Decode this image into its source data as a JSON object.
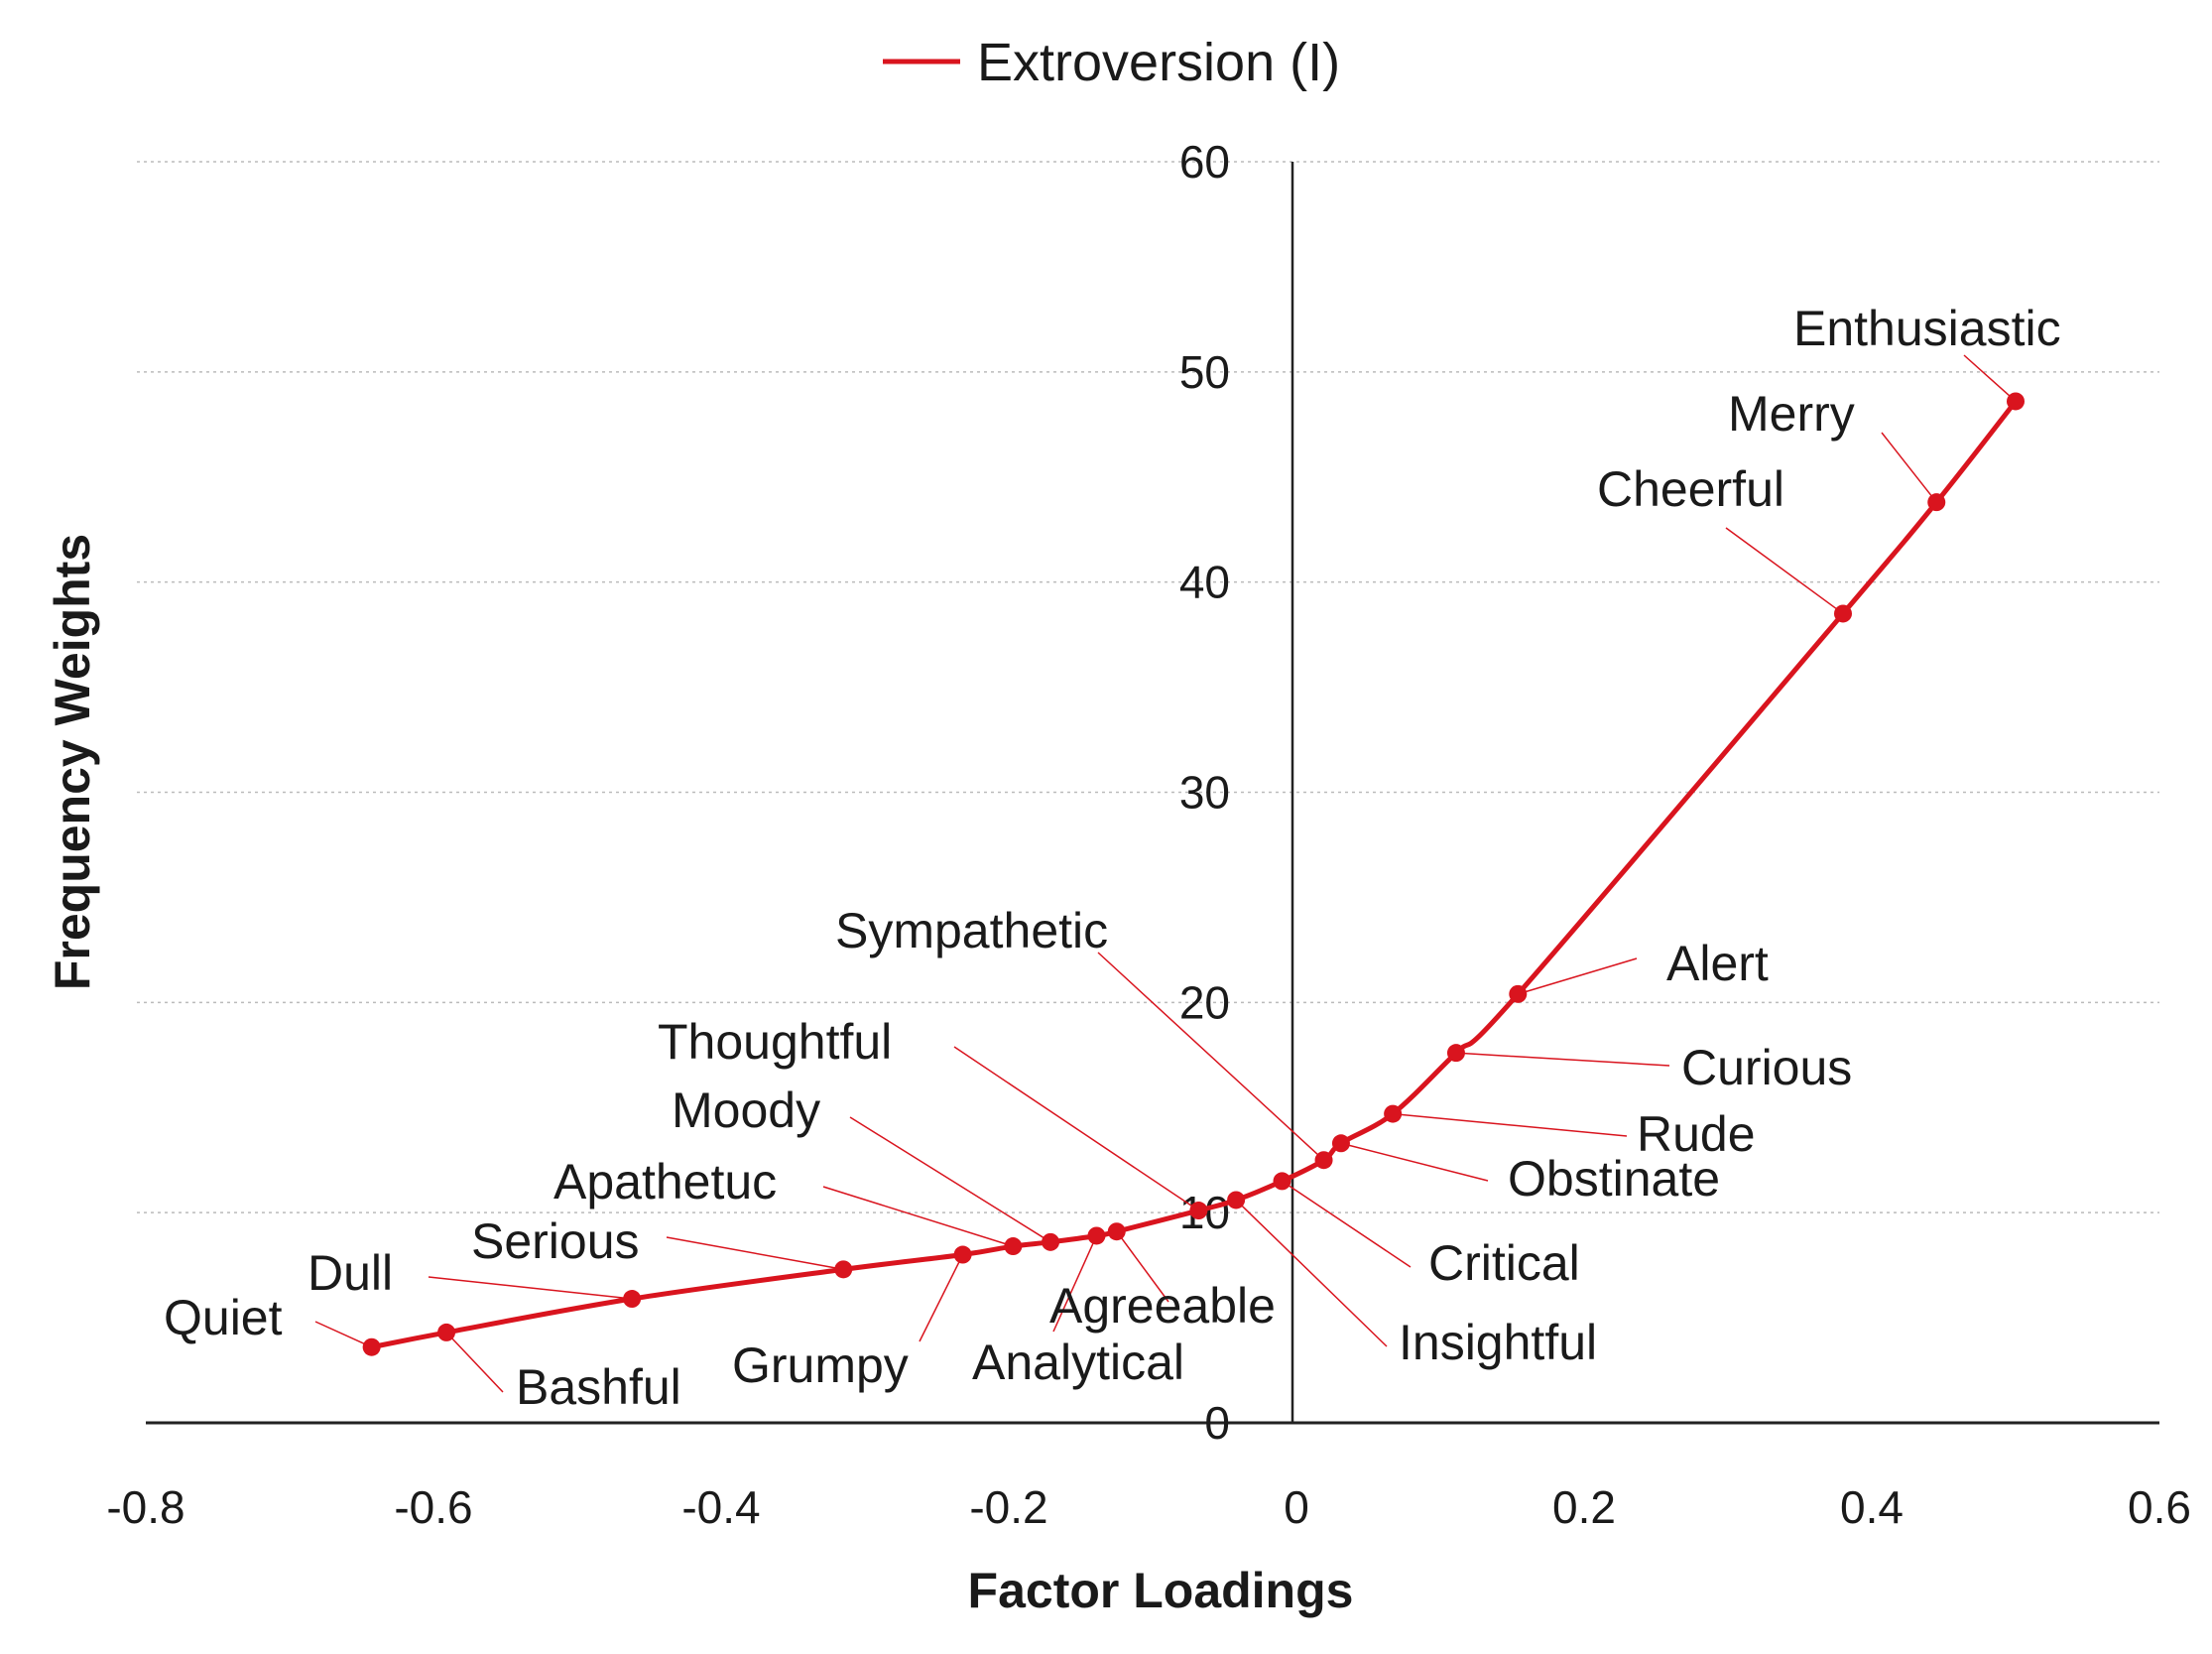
{
  "chart_data": {
    "type": "line",
    "title": "",
    "xlabel": "Factor Loadings",
    "ylabel": "Frequency Weights",
    "xlim": [
      -0.8,
      0.6
    ],
    "ylim": [
      0,
      60
    ],
    "x_ticks": [
      "-0.8",
      "-0.6",
      "-0.4",
      "-0.2",
      "0",
      "0.2",
      "0.4",
      "0.6"
    ],
    "y_ticks": [
      "0",
      "10",
      "20",
      "30",
      "40",
      "50",
      "60"
    ],
    "grid": "horizontal-dotted",
    "legend_position": "top-center",
    "colors": {
      "series": "#d9141e",
      "axis": "#222222",
      "grid": "#bbbbbb"
    },
    "series": [
      {
        "name": "Extroversion (I)",
        "points": [
          {
            "label": "Quiet",
            "x": -0.643,
            "y": 3.6
          },
          {
            "label": "Bashful",
            "x": -0.591,
            "y": 4.3
          },
          {
            "label": "Dull",
            "x": -0.462,
            "y": 5.9
          },
          {
            "label": "Serious",
            "x": -0.315,
            "y": 7.3
          },
          {
            "label": "Grumpy",
            "x": -0.232,
            "y": 8.0
          },
          {
            "label": "Apathetuc",
            "x": -0.197,
            "y": 8.4
          },
          {
            "label": "Moody",
            "x": -0.171,
            "y": 8.6
          },
          {
            "label": "Analytical",
            "x": -0.139,
            "y": 8.9
          },
          {
            "label": "Agreeable",
            "x": -0.125,
            "y": 9.1
          },
          {
            "label": "Thoughtful",
            "x": -0.068,
            "y": 10.1
          },
          {
            "label": "Insightful",
            "x": -0.042,
            "y": 10.6
          },
          {
            "label": "Critical",
            "x": -0.01,
            "y": 11.5
          },
          {
            "label": "Sympathetic",
            "x": 0.019,
            "y": 12.5
          },
          {
            "label": "Obstinate",
            "x": 0.031,
            "y": 13.3
          },
          {
            "label": "Rude",
            "x": 0.067,
            "y": 14.7
          },
          {
            "label": "Curious",
            "x": 0.111,
            "y": 17.6
          },
          {
            "label": "Alert",
            "x": 0.154,
            "y": 20.4
          },
          {
            "label": "Cheerful",
            "x": 0.38,
            "y": 38.5
          },
          {
            "label": "Merry",
            "x": 0.445,
            "y": 43.8
          },
          {
            "label": "Enthusiastic",
            "x": 0.5,
            "y": 48.6
          }
        ]
      }
    ]
  }
}
